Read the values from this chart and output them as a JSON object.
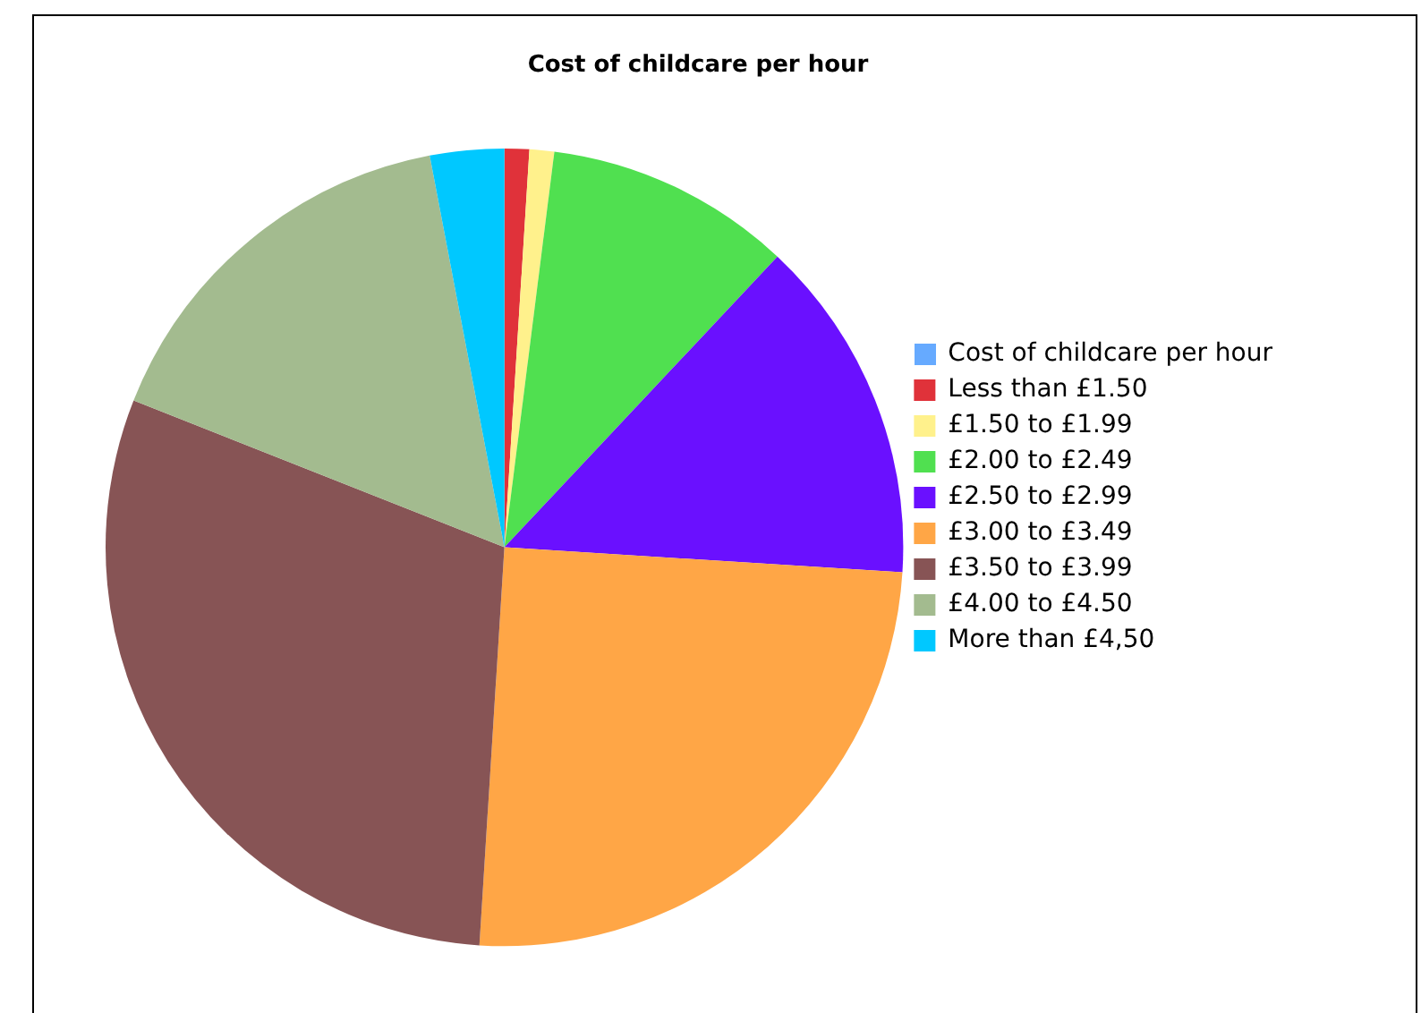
{
  "chart_data": {
    "type": "pie",
    "title": "Cost of childcare per hour",
    "legend_title": "Cost of childcare per hour",
    "legend": "right",
    "categories": [
      "Less than £1.50",
      "£1.50 to £1.99",
      "£2.00 to £2.49",
      "£2.50 to £2.99",
      "£3.00 to £3.49",
      "£3.50 to £3.99",
      "£4.00 to £4.50",
      "More than £4,50"
    ],
    "values": [
      1,
      1,
      10,
      14,
      25,
      30,
      16,
      3
    ],
    "colors": [
      "#e0323a",
      "#fff18c",
      "#50e050",
      "#6a10ff",
      "#ffa646",
      "#875455",
      "#a3bb8f",
      "#00c8ff"
    ]
  }
}
